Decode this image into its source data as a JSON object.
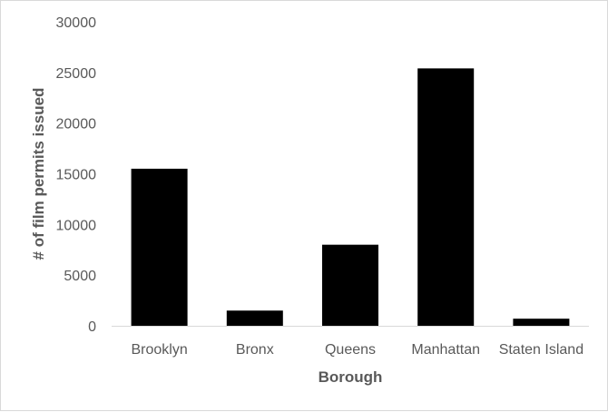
{
  "chart_data": {
    "type": "bar",
    "title": "",
    "xlabel": "Borough",
    "ylabel": "# of film permits issued",
    "categories": [
      "Brooklyn",
      "Bronx",
      "Queens",
      "Manhattan",
      "Staten Island"
    ],
    "values": [
      15500,
      1500,
      8000,
      25400,
      700
    ],
    "ylim": [
      0,
      30000
    ],
    "yticks": [
      "0",
      "5000",
      "10000",
      "15000",
      "20000",
      "25000",
      "30000"
    ],
    "grid": false,
    "legend": "none",
    "bar_color": "#000000",
    "axis_color": "#d9d9d9",
    "text_color": "#595959"
  }
}
